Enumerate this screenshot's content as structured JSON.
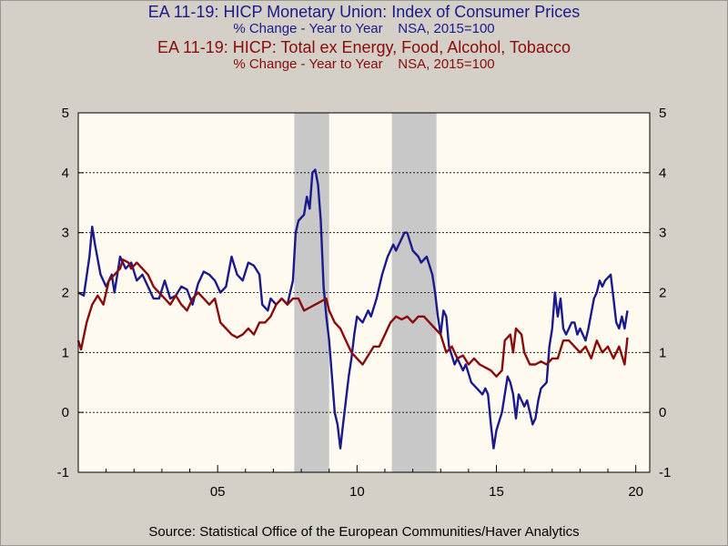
{
  "titles": {
    "series1_title": "EA 11-19: HICP Monetary Union: Index of Consumer Prices",
    "series1_subtitle": "% Change - Year to Year    NSA, 2015=100",
    "series2_title": "EA 11-19: HICP: Total ex Energy, Food, Alcohol, Tobacco",
    "series2_subtitle": "% Change - Year to Year    NSA, 2015=100"
  },
  "source": "Source:  Statistical Office of the European Communities/Haver Analytics",
  "colors": {
    "background": "#d4d0c8",
    "plot_area": "#fffbf0",
    "shade": "#c8c8c8",
    "series1": "#1a1a8c",
    "series2": "#8b0a0a"
  },
  "chart_data": {
    "type": "line",
    "x_unit": "year",
    "xlim": [
      2000.0,
      2020.5
    ],
    "ylim": [
      -1,
      5
    ],
    "y_ticks": [
      -1,
      0,
      1,
      2,
      3,
      4,
      5
    ],
    "y_tick_labels": [
      "-1",
      "0",
      "1",
      "2",
      "3",
      "4",
      "5"
    ],
    "x_ticks": [
      2005,
      2010,
      2015,
      2020
    ],
    "x_tick_labels": [
      "05",
      "10",
      "15",
      "20"
    ],
    "grid": "horizontal dotted at 1, 2, 3, 4",
    "recession_shading": [
      [
        2007.75,
        2009.0
      ],
      [
        2011.25,
        2012.85
      ]
    ],
    "series": [
      {
        "color": "#1a1a8c",
        "points": [
          [
            2000.0,
            2.0
          ],
          [
            2000.2,
            1.95
          ],
          [
            2000.4,
            2.6
          ],
          [
            2000.5,
            3.1
          ],
          [
            2000.6,
            2.8
          ],
          [
            2000.8,
            2.3
          ],
          [
            2001.0,
            2.1
          ],
          [
            2001.2,
            2.3
          ],
          [
            2001.3,
            2.0
          ],
          [
            2001.5,
            2.6
          ],
          [
            2001.7,
            2.4
          ],
          [
            2001.9,
            2.5
          ],
          [
            2002.1,
            2.2
          ],
          [
            2002.3,
            2.3
          ],
          [
            2002.5,
            2.1
          ],
          [
            2002.7,
            1.9
          ],
          [
            2002.9,
            1.9
          ],
          [
            2003.1,
            2.2
          ],
          [
            2003.3,
            1.9
          ],
          [
            2003.5,
            1.95
          ],
          [
            2003.7,
            2.1
          ],
          [
            2003.9,
            2.05
          ],
          [
            2004.1,
            1.8
          ],
          [
            2004.3,
            2.15
          ],
          [
            2004.5,
            2.35
          ],
          [
            2004.7,
            2.3
          ],
          [
            2004.9,
            2.2
          ],
          [
            2005.1,
            2.0
          ],
          [
            2005.3,
            2.1
          ],
          [
            2005.5,
            2.6
          ],
          [
            2005.7,
            2.3
          ],
          [
            2005.9,
            2.2
          ],
          [
            2006.1,
            2.5
          ],
          [
            2006.3,
            2.45
          ],
          [
            2006.5,
            2.3
          ],
          [
            2006.6,
            1.8
          ],
          [
            2006.8,
            1.7
          ],
          [
            2006.9,
            1.9
          ],
          [
            2007.1,
            1.8
          ],
          [
            2007.3,
            1.9
          ],
          [
            2007.5,
            1.8
          ],
          [
            2007.7,
            2.2
          ],
          [
            2007.8,
            3.0
          ],
          [
            2007.9,
            3.2
          ],
          [
            2008.1,
            3.3
          ],
          [
            2008.2,
            3.6
          ],
          [
            2008.3,
            3.4
          ],
          [
            2008.4,
            4.0
          ],
          [
            2008.5,
            4.05
          ],
          [
            2008.6,
            3.8
          ],
          [
            2008.7,
            3.2
          ],
          [
            2008.8,
            2.1
          ],
          [
            2008.9,
            1.6
          ],
          [
            2009.0,
            1.2
          ],
          [
            2009.1,
            0.6
          ],
          [
            2009.2,
            0.0
          ],
          [
            2009.3,
            -0.2
          ],
          [
            2009.4,
            -0.6
          ],
          [
            2009.5,
            -0.2
          ],
          [
            2009.6,
            0.2
          ],
          [
            2009.7,
            0.6
          ],
          [
            2009.8,
            0.9
          ],
          [
            2009.9,
            1.3
          ],
          [
            2010.0,
            1.6
          ],
          [
            2010.2,
            1.5
          ],
          [
            2010.4,
            1.7
          ],
          [
            2010.5,
            1.6
          ],
          [
            2010.7,
            1.9
          ],
          [
            2010.9,
            2.3
          ],
          [
            2011.1,
            2.6
          ],
          [
            2011.3,
            2.8
          ],
          [
            2011.4,
            2.7
          ],
          [
            2011.5,
            2.8
          ],
          [
            2011.7,
            3.0
          ],
          [
            2011.8,
            3.0
          ],
          [
            2012.0,
            2.7
          ],
          [
            2012.2,
            2.6
          ],
          [
            2012.3,
            2.5
          ],
          [
            2012.5,
            2.6
          ],
          [
            2012.7,
            2.3
          ],
          [
            2012.8,
            2.0
          ],
          [
            2012.9,
            1.6
          ],
          [
            2013.0,
            1.3
          ],
          [
            2013.1,
            1.7
          ],
          [
            2013.2,
            1.6
          ],
          [
            2013.3,
            1.1
          ],
          [
            2013.5,
            0.8
          ],
          [
            2013.6,
            0.9
          ],
          [
            2013.8,
            0.7
          ],
          [
            2013.9,
            0.8
          ],
          [
            2014.1,
            0.5
          ],
          [
            2014.3,
            0.4
          ],
          [
            2014.5,
            0.3
          ],
          [
            2014.6,
            0.4
          ],
          [
            2014.7,
            0.3
          ],
          [
            2014.8,
            -0.2
          ],
          [
            2014.9,
            -0.6
          ],
          [
            2015.0,
            -0.3
          ],
          [
            2015.2,
            0.0
          ],
          [
            2015.3,
            0.3
          ],
          [
            2015.4,
            0.6
          ],
          [
            2015.5,
            0.5
          ],
          [
            2015.6,
            0.3
          ],
          [
            2015.7,
            -0.1
          ],
          [
            2015.8,
            0.3
          ],
          [
            2015.9,
            0.2
          ],
          [
            2016.0,
            0.1
          ],
          [
            2016.1,
            0.2
          ],
          [
            2016.2,
            0.0
          ],
          [
            2016.3,
            -0.2
          ],
          [
            2016.4,
            -0.1
          ],
          [
            2016.5,
            0.2
          ],
          [
            2016.6,
            0.4
          ],
          [
            2016.8,
            0.5
          ],
          [
            2016.9,
            1.1
          ],
          [
            2017.0,
            1.4
          ],
          [
            2017.1,
            2.0
          ],
          [
            2017.2,
            1.6
          ],
          [
            2017.3,
            1.9
          ],
          [
            2017.4,
            1.4
          ],
          [
            2017.5,
            1.3
          ],
          [
            2017.7,
            1.5
          ],
          [
            2017.8,
            1.5
          ],
          [
            2017.9,
            1.3
          ],
          [
            2018.0,
            1.4
          ],
          [
            2018.2,
            1.2
          ],
          [
            2018.3,
            1.4
          ],
          [
            2018.5,
            1.9
          ],
          [
            2018.6,
            2.0
          ],
          [
            2018.7,
            2.2
          ],
          [
            2018.8,
            2.1
          ],
          [
            2018.9,
            2.2
          ],
          [
            2019.1,
            2.3
          ],
          [
            2019.2,
            1.9
          ],
          [
            2019.3,
            1.5
          ],
          [
            2019.4,
            1.4
          ],
          [
            2019.5,
            1.6
          ],
          [
            2019.6,
            1.4
          ],
          [
            2019.7,
            1.7
          ]
        ]
      },
      {
        "color": "#8b0a0a",
        "points": [
          [
            2000.0,
            1.2
          ],
          [
            2000.1,
            1.05
          ],
          [
            2000.3,
            1.5
          ],
          [
            2000.5,
            1.8
          ],
          [
            2000.7,
            1.95
          ],
          [
            2000.9,
            1.8
          ],
          [
            2001.1,
            2.2
          ],
          [
            2001.3,
            2.3
          ],
          [
            2001.5,
            2.4
          ],
          [
            2001.6,
            2.55
          ],
          [
            2001.8,
            2.5
          ],
          [
            2001.9,
            2.4
          ],
          [
            2002.1,
            2.5
          ],
          [
            2002.3,
            2.4
          ],
          [
            2002.5,
            2.3
          ],
          [
            2002.7,
            2.1
          ],
          [
            2002.9,
            2.0
          ],
          [
            2003.1,
            1.9
          ],
          [
            2003.3,
            1.8
          ],
          [
            2003.5,
            1.95
          ],
          [
            2003.7,
            1.8
          ],
          [
            2003.9,
            1.7
          ],
          [
            2004.1,
            1.9
          ],
          [
            2004.3,
            2.0
          ],
          [
            2004.5,
            1.9
          ],
          [
            2004.7,
            1.8
          ],
          [
            2004.9,
            1.9
          ],
          [
            2005.1,
            1.5
          ],
          [
            2005.3,
            1.4
          ],
          [
            2005.5,
            1.3
          ],
          [
            2005.7,
            1.25
          ],
          [
            2005.9,
            1.3
          ],
          [
            2006.1,
            1.4
          ],
          [
            2006.3,
            1.3
          ],
          [
            2006.5,
            1.5
          ],
          [
            2006.7,
            1.5
          ],
          [
            2006.9,
            1.6
          ],
          [
            2007.1,
            1.8
          ],
          [
            2007.3,
            1.9
          ],
          [
            2007.5,
            1.8
          ],
          [
            2007.7,
            1.9
          ],
          [
            2007.9,
            1.9
          ],
          [
            2008.1,
            1.7
          ],
          [
            2008.3,
            1.75
          ],
          [
            2008.5,
            1.8
          ],
          [
            2008.7,
            1.85
          ],
          [
            2008.9,
            1.9
          ],
          [
            2009.0,
            1.7
          ],
          [
            2009.2,
            1.5
          ],
          [
            2009.4,
            1.4
          ],
          [
            2009.6,
            1.2
          ],
          [
            2009.8,
            1.0
          ],
          [
            2010.0,
            0.9
          ],
          [
            2010.2,
            0.8
          ],
          [
            2010.4,
            0.95
          ],
          [
            2010.6,
            1.1
          ],
          [
            2010.8,
            1.1
          ],
          [
            2011.0,
            1.3
          ],
          [
            2011.2,
            1.5
          ],
          [
            2011.4,
            1.6
          ],
          [
            2011.6,
            1.55
          ],
          [
            2011.8,
            1.6
          ],
          [
            2012.0,
            1.5
          ],
          [
            2012.2,
            1.6
          ],
          [
            2012.4,
            1.6
          ],
          [
            2012.6,
            1.5
          ],
          [
            2012.8,
            1.4
          ],
          [
            2013.0,
            1.3
          ],
          [
            2013.2,
            1.0
          ],
          [
            2013.4,
            1.1
          ],
          [
            2013.6,
            0.9
          ],
          [
            2013.8,
            0.95
          ],
          [
            2014.0,
            0.8
          ],
          [
            2014.2,
            0.9
          ],
          [
            2014.4,
            0.8
          ],
          [
            2014.6,
            0.75
          ],
          [
            2014.8,
            0.7
          ],
          [
            2015.0,
            0.6
          ],
          [
            2015.2,
            0.7
          ],
          [
            2015.3,
            1.2
          ],
          [
            2015.5,
            1.3
          ],
          [
            2015.6,
            1.0
          ],
          [
            2015.7,
            1.4
          ],
          [
            2015.9,
            1.3
          ],
          [
            2016.0,
            1.0
          ],
          [
            2016.2,
            0.8
          ],
          [
            2016.4,
            0.8
          ],
          [
            2016.6,
            0.85
          ],
          [
            2016.8,
            0.8
          ],
          [
            2017.0,
            0.9
          ],
          [
            2017.2,
            0.9
          ],
          [
            2017.4,
            1.2
          ],
          [
            2017.6,
            1.2
          ],
          [
            2017.8,
            1.1
          ],
          [
            2018.0,
            1.0
          ],
          [
            2018.2,
            1.1
          ],
          [
            2018.4,
            0.9
          ],
          [
            2018.6,
            1.2
          ],
          [
            2018.8,
            1.0
          ],
          [
            2019.0,
            1.1
          ],
          [
            2019.2,
            0.9
          ],
          [
            2019.4,
            1.1
          ],
          [
            2019.6,
            0.8
          ],
          [
            2019.7,
            1.25
          ]
        ]
      }
    ]
  }
}
